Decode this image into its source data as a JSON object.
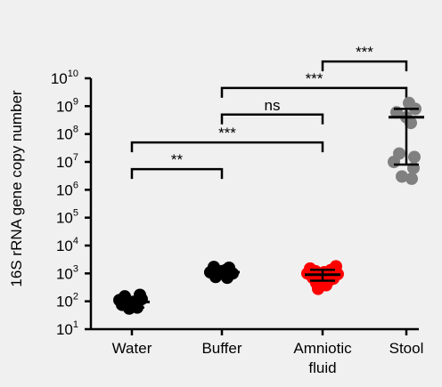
{
  "chart_data": {
    "type": "scatter",
    "title": "",
    "xlabel": "",
    "ylabel": "16S rRNA gene copy number",
    "y_scale": "log10",
    "ylim": [
      10,
      10000000000
    ],
    "y_ticks": [
      {
        "value": 10,
        "base": "10",
        "exp": "1"
      },
      {
        "value": 100,
        "base": "10",
        "exp": "2"
      },
      {
        "value": 1000,
        "base": "10",
        "exp": "3"
      },
      {
        "value": 10000,
        "base": "10",
        "exp": "4"
      },
      {
        "value": 100000,
        "base": "10",
        "exp": "5"
      },
      {
        "value": 1000000,
        "base": "10",
        "exp": "6"
      },
      {
        "value": 10000000,
        "base": "10",
        "exp": "7"
      },
      {
        "value": 100000000,
        "base": "10",
        "exp": "8"
      },
      {
        "value": 1000000000,
        "base": "10",
        "exp": "9"
      },
      {
        "value": 10000000000,
        "base": "10",
        "exp": "10"
      }
    ],
    "categories": [
      {
        "label_lines": [
          "Water"
        ]
      },
      {
        "label_lines": [
          "Buffer"
        ]
      },
      {
        "label_lines": [
          "Amniotic",
          "fluid"
        ]
      },
      {
        "label_lines": [
          "Stool"
        ]
      }
    ],
    "groups": [
      {
        "color": "#000000",
        "points": [
          {
            "y": 150,
            "dx": -0.4
          },
          {
            "y": 95,
            "dx": 0.05
          },
          {
            "y": 170,
            "dx": 0.45
          },
          {
            "y": 120,
            "dx": 0.55
          },
          {
            "y": 75,
            "dx": -0.55
          },
          {
            "y": 55,
            "dx": -0.15
          },
          {
            "y": 60,
            "dx": 0.3
          },
          {
            "y": 110,
            "dx": -0.7
          }
        ],
        "center": 95,
        "err_low": 60,
        "err_high": 135
      },
      {
        "color": "#000000",
        "points": [
          {
            "y": 1700,
            "dx": -0.45
          },
          {
            "y": 1600,
            "dx": 0.4
          },
          {
            "y": 1200,
            "dx": 0.0
          },
          {
            "y": 1100,
            "dx": -0.65
          },
          {
            "y": 1000,
            "dx": 0.6
          },
          {
            "y": 750,
            "dx": -0.35
          },
          {
            "y": 700,
            "dx": 0.3
          },
          {
            "y": 1300,
            "dx": 0.2
          }
        ],
        "center": 1100,
        "err_low": 800,
        "err_high": 1400
      },
      {
        "color": "#ff0000",
        "points": [
          {
            "y": 1800,
            "dx": 0.75
          },
          {
            "y": 1500,
            "dx": -0.7
          },
          {
            "y": 1300,
            "dx": 0.45
          },
          {
            "y": 1200,
            "dx": -0.4
          },
          {
            "y": 1100,
            "dx": 0.1
          },
          {
            "y": 1000,
            "dx": -0.85
          },
          {
            "y": 950,
            "dx": 0.85
          },
          {
            "y": 850,
            "dx": -0.2
          },
          {
            "y": 800,
            "dx": 0.3
          },
          {
            "y": 700,
            "dx": -0.55
          },
          {
            "y": 650,
            "dx": 0.6
          },
          {
            "y": 600,
            "dx": -0.05
          },
          {
            "y": 550,
            "dx": 0.35
          },
          {
            "y": 450,
            "dx": -0.35
          },
          {
            "y": 380,
            "dx": 0.2
          },
          {
            "y": 280,
            "dx": -0.25
          },
          {
            "y": 1000,
            "dx": -0.1
          },
          {
            "y": 750,
            "dx": 0.55
          }
        ],
        "center": 900,
        "err_low": 550,
        "err_high": 1350
      },
      {
        "color": "#808080",
        "points": [
          {
            "y": 1300000000,
            "dx": 0.15
          },
          {
            "y": 800000000,
            "dx": 0.5
          },
          {
            "y": 600000000,
            "dx": -0.55
          },
          {
            "y": 400000000,
            "dx": 0.0
          },
          {
            "y": 250000000,
            "dx": 0.25
          },
          {
            "y": 20000000,
            "dx": -0.4
          },
          {
            "y": 15000000,
            "dx": 0.45
          },
          {
            "y": 10000000,
            "dx": -0.7
          },
          {
            "y": 6000000,
            "dx": 0.4
          },
          {
            "y": 3000000,
            "dx": -0.25
          },
          {
            "y": 2500000,
            "dx": 0.3
          }
        ],
        "center": 400000000,
        "err_low": 8000000,
        "err_high": 800000000
      }
    ],
    "significance": [
      {
        "from": 0,
        "to": 1,
        "y": 5500000,
        "label": "**"
      },
      {
        "from": 0,
        "to": 2,
        "y": 50000000,
        "label": "***"
      },
      {
        "from": 1,
        "to": 2,
        "y": 500000000,
        "label": "ns"
      },
      {
        "from": 1,
        "to": 3,
        "y": 4500000000,
        "label": "***"
      },
      {
        "from": 2,
        "to": 3,
        "y": 40000000000,
        "label": "***"
      }
    ]
  }
}
